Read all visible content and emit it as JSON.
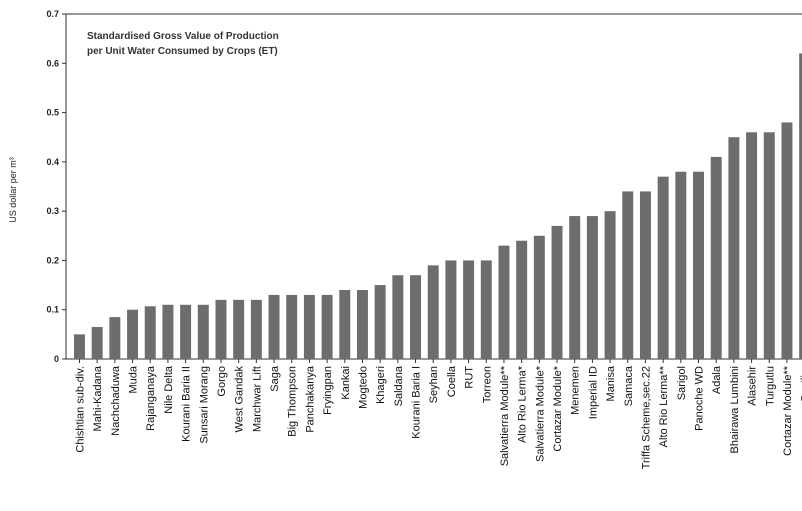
{
  "chart_data": {
    "type": "bar",
    "title_lines": [
      "Standardised Gross Value of Production",
      "per Unit Water Consumed by Crops (ET)"
    ],
    "ylabel": "US dollar per m³",
    "xlabel": "",
    "ylim": [
      0,
      0.7
    ],
    "yticks": [
      "0",
      "0.1",
      "0.2",
      "0.3",
      "0.4",
      "0.5",
      "0.6",
      "0.7"
    ],
    "grid": false,
    "colors": {
      "bar": "#6d6d6d",
      "axis": "#333333",
      "text": "#111111"
    },
    "categories": [
      "Chishtian sub-div.",
      "Mahi-Kadana",
      "Nachchaduwa",
      "Muda",
      "Rajanganaya",
      "Nile Delta",
      "Kourani Baria II",
      "Sunsari Morang",
      "Gorgo",
      "West Gandak",
      "Marchwar Lift",
      "Saga",
      "Big Thompson",
      "Panchakanya",
      "Fryingpan",
      "Kankai",
      "Mogtedo",
      "Khageri",
      "Saldana",
      "Kourani Baria I",
      "Seyhan",
      "Coella",
      "RUT",
      "Torreon",
      "Salvatierra Module**",
      "Alto Rio Lerma*",
      "Salvatierra Module*",
      "Cortazar Module*",
      "Menemen",
      "Imperial ID",
      "Manisa",
      "Samaca",
      "Triffa Scheme,sec.22",
      "Alto Rio Lerma**",
      "Sarigol",
      "Panoche WD",
      "Adala",
      "Bhairawa Lumbini",
      "Alasehir",
      "Turgutlu",
      "Cortazar Module**",
      "Scotli..."
    ],
    "values": [
      0.05,
      0.065,
      0.085,
      0.1,
      0.107,
      0.11,
      0.11,
      0.11,
      0.12,
      0.12,
      0.12,
      0.13,
      0.13,
      0.13,
      0.13,
      0.14,
      0.14,
      0.15,
      0.17,
      0.17,
      0.19,
      0.2,
      0.2,
      0.2,
      0.23,
      0.24,
      0.25,
      0.27,
      0.29,
      0.29,
      0.3,
      0.34,
      0.34,
      0.37,
      0.38,
      0.38,
      0.41,
      0.45,
      0.46,
      0.46,
      0.48,
      0.62
    ]
  }
}
